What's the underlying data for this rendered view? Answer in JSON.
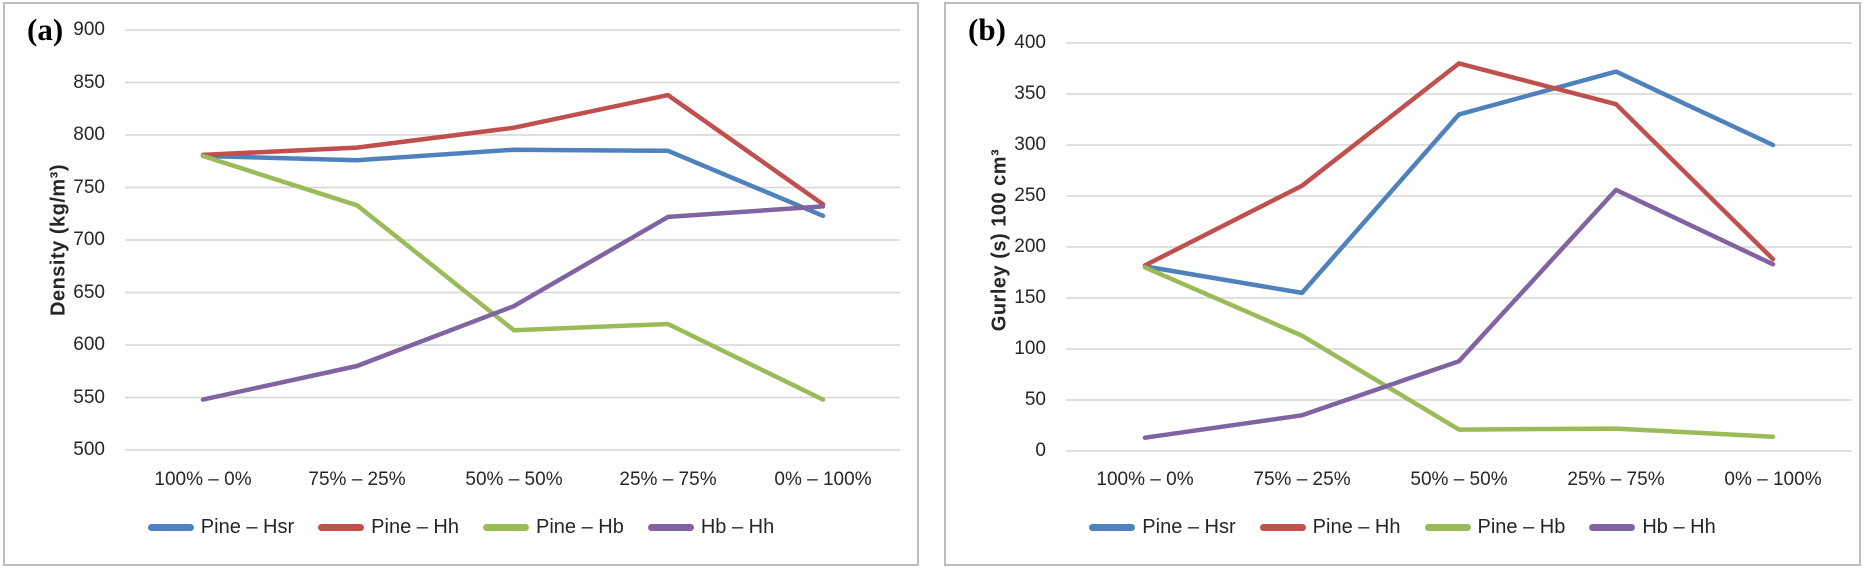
{
  "figure": {
    "panel_labels": [
      "(a)",
      "(b)"
    ]
  },
  "chart_data": [
    {
      "type": "line",
      "title": "",
      "xlabel": "",
      "ylabel": "Density (kg/m³)",
      "ylim": [
        500,
        900
      ],
      "ytick_step": 50,
      "grid": true,
      "legend_position": "bottom",
      "categories": [
        "100% – 0%",
        "75% – 25%",
        "50% – 50%",
        "25% – 75%",
        "0% – 100%"
      ],
      "series": [
        {
          "name": "Pine – Hsr",
          "color": "#4F81BD",
          "values": [
            780,
            776,
            786,
            785,
            723
          ]
        },
        {
          "name": "Pine – Hh",
          "color": "#C0504D",
          "values": [
            781,
            788,
            807,
            838,
            734
          ]
        },
        {
          "name": "Pine – Hb",
          "color": "#9BBB59",
          "values": [
            780,
            733,
            614,
            620,
            548
          ]
        },
        {
          "name": "Hb – Hh",
          "color": "#8064A2",
          "values": [
            548,
            580,
            637,
            722,
            732
          ]
        }
      ]
    },
    {
      "type": "line",
      "title": "",
      "xlabel": "",
      "ylabel": "Gurley (s) 100 cm³",
      "ylim": [
        0,
        400
      ],
      "ytick_step": 50,
      "grid": true,
      "legend_position": "bottom",
      "categories": [
        "100% – 0%",
        "75% – 25%",
        "50% – 50%",
        "25% – 75%",
        "0% – 100%"
      ],
      "series": [
        {
          "name": "Pine – Hsr",
          "color": "#4F81BD",
          "values": [
            181,
            155,
            330,
            372,
            300
          ]
        },
        {
          "name": "Pine – Hh",
          "color": "#C0504D",
          "values": [
            182,
            260,
            380,
            340,
            188
          ]
        },
        {
          "name": "Pine – Hb",
          "color": "#9BBB59",
          "values": [
            180,
            113,
            21,
            22,
            14
          ]
        },
        {
          "name": "Hb – Hh",
          "color": "#8064A2",
          "values": [
            13,
            35,
            88,
            256,
            183
          ]
        }
      ]
    }
  ],
  "style": {
    "gridline_color": "#d6d6d6",
    "panel_border_color": "#bdbdbd",
    "text_color": "#262626"
  }
}
